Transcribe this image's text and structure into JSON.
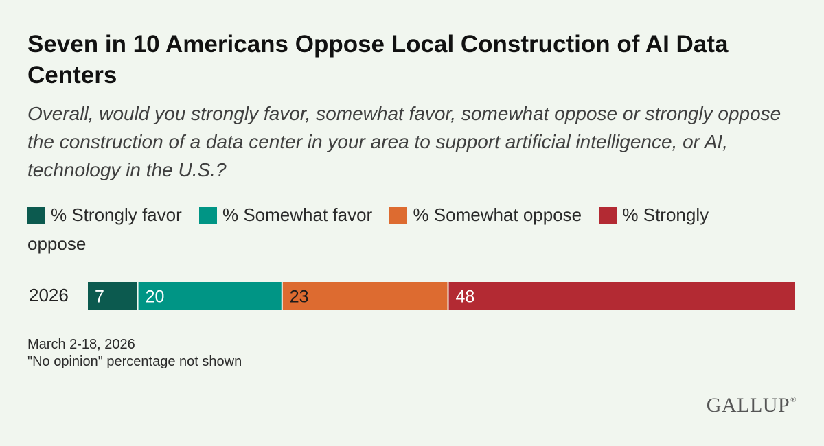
{
  "title": "Seven in 10 Americans Oppose Local Construction of AI Data Centers",
  "subtitle": "Overall, would you strongly favor, somewhat favor, somewhat oppose or strongly oppose the construction of a data center in your area to support artificial intelligence, or AI, technology in the U.S.?",
  "chart_data": {
    "type": "bar",
    "orientation": "horizontal",
    "stacked": true,
    "categories": [
      "2026"
    ],
    "series": [
      {
        "name": "% Strongly favor",
        "values": [
          7
        ],
        "color": "#0c5a4f"
      },
      {
        "name": "% Somewhat favor",
        "values": [
          20
        ],
        "color": "#009585"
      },
      {
        "name": "% Somewhat oppose",
        "values": [
          23
        ],
        "color": "#dd6b30"
      },
      {
        "name": "% Strongly oppose",
        "values": [
          48
        ],
        "color": "#b32a33"
      }
    ],
    "legend_position": "top",
    "grid": false
  },
  "footnotes": {
    "date": "March 2-18, 2026",
    "note": "\"No opinion\" percentage not shown"
  },
  "logo": {
    "text": "GALLUP",
    "mark": "®"
  },
  "colors": {
    "background": "#f1f6ef",
    "label_text_light": "#ffffff"
  }
}
